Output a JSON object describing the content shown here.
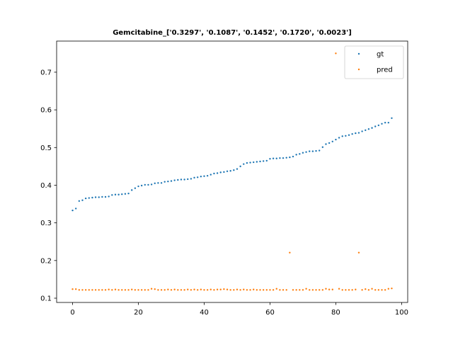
{
  "chart_data": {
    "type": "scatter",
    "title": "Gemcitabine_['0.3297', '0.1087', '0.1452', '0.1720', '0.0023']",
    "xlabel": "",
    "ylabel": "",
    "xlim": [
      -4.85,
      101.85
    ],
    "ylim": [
      0.0887,
      0.7826
    ],
    "xticks": [
      0,
      20,
      40,
      60,
      80,
      100
    ],
    "yticks": [
      0.1,
      0.2,
      0.3,
      0.4,
      0.5,
      0.6,
      0.7
    ],
    "ytick_labels": [
      "0.1",
      "0.2",
      "0.3",
      "0.4",
      "0.5",
      "0.6",
      "0.7"
    ],
    "grid": false,
    "legend_position": "top-right",
    "series": [
      {
        "name": "gt",
        "color": "#1f77b4",
        "values": [
          0.333,
          0.338,
          0.358,
          0.36,
          0.365,
          0.366,
          0.367,
          0.368,
          0.368,
          0.369,
          0.369,
          0.37,
          0.374,
          0.375,
          0.375,
          0.376,
          0.377,
          0.378,
          0.387,
          0.392,
          0.397,
          0.399,
          0.401,
          0.401,
          0.402,
          0.405,
          0.406,
          0.406,
          0.409,
          0.41,
          0.411,
          0.413,
          0.414,
          0.415,
          0.415,
          0.416,
          0.417,
          0.42,
          0.421,
          0.423,
          0.424,
          0.425,
          0.428,
          0.431,
          0.432,
          0.434,
          0.435,
          0.437,
          0.438,
          0.44,
          0.443,
          0.45,
          0.456,
          0.459,
          0.46,
          0.461,
          0.462,
          0.463,
          0.464,
          0.465,
          0.47,
          0.471,
          0.471,
          0.472,
          0.472,
          0.473,
          0.474,
          0.476,
          0.481,
          0.483,
          0.486,
          0.488,
          0.49,
          0.49,
          0.491,
          0.492,
          0.501,
          0.509,
          0.512,
          0.516,
          0.521,
          0.526,
          0.53,
          0.531,
          0.533,
          0.536,
          0.538,
          0.539,
          0.543,
          0.546,
          0.549,
          0.552,
          0.556,
          0.559,
          0.563,
          0.566,
          0.566,
          0.578
        ]
      },
      {
        "name": "pred",
        "color": "#ff7f0e",
        "values": [
          0.124,
          0.124,
          0.122,
          0.122,
          0.122,
          0.122,
          0.122,
          0.122,
          0.122,
          0.122,
          0.122,
          0.123,
          0.122,
          0.123,
          0.122,
          0.122,
          0.122,
          0.122,
          0.123,
          0.122,
          0.122,
          0.122,
          0.122,
          0.122,
          0.125,
          0.124,
          0.122,
          0.122,
          0.122,
          0.123,
          0.122,
          0.123,
          0.122,
          0.122,
          0.122,
          0.123,
          0.122,
          0.123,
          0.122,
          0.123,
          0.122,
          0.122,
          0.123,
          0.122,
          0.123,
          0.123,
          0.124,
          0.123,
          0.122,
          0.122,
          0.123,
          0.122,
          0.123,
          0.122,
          0.122,
          0.123,
          0.122,
          0.122,
          0.122,
          0.122,
          0.122,
          0.122,
          0.125,
          0.122,
          0.122,
          0.122,
          0.221,
          0.122,
          0.122,
          0.122,
          0.122,
          0.125,
          0.122,
          0.122,
          0.122,
          0.122,
          0.122,
          0.125,
          0.123,
          0.123,
          0.75,
          0.125,
          0.122,
          0.122,
          0.122,
          0.122,
          0.123,
          0.221,
          0.122,
          0.124,
          0.122,
          0.125,
          0.122,
          0.122,
          0.122,
          0.122,
          0.125,
          0.126
        ]
      }
    ]
  }
}
